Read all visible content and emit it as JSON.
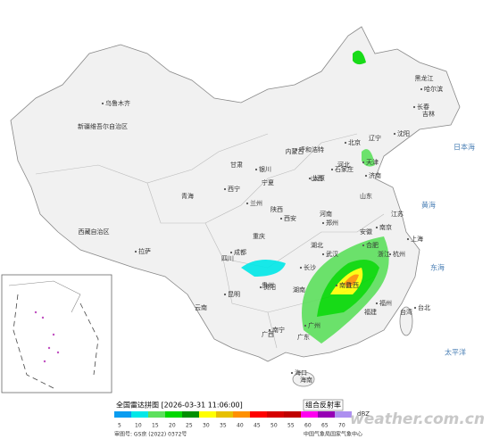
{
  "map": {
    "labels": [
      "新疆维吾尔自治区",
      "西藏自治区",
      "青海",
      "甘肃",
      "内蒙古",
      "黑龙江",
      "吉林",
      "辽宁",
      "河北",
      "山西",
      "陕西",
      "宁夏",
      "四川",
      "云南",
      "贵州",
      "广西",
      "广东",
      "湖南",
      "湖北",
      "河南",
      "山东",
      "江苏",
      "安徽",
      "浙江",
      "江西",
      "福建",
      "台湾",
      "海南",
      "重庆",
      "乌鲁木齐",
      "拉萨",
      "西宁",
      "兰州",
      "呼和浩特",
      "哈尔滨",
      "长春",
      "沈阳",
      "北京",
      "天津",
      "石家庄",
      "太原",
      "济南",
      "郑州",
      "西安",
      "银川",
      "成都",
      "武汉",
      "长沙",
      "贵阳",
      "昆明",
      "南宁",
      "广州",
      "南昌",
      "合肥",
      "南京",
      "上海",
      "杭州",
      "福州",
      "台北",
      "海口",
      "日本海",
      "黄海",
      "东海",
      "太平洋"
    ]
  },
  "legend": {
    "title": "全国雷达拼图 [2026-03-31 11:06:00]",
    "product": "组合反射率",
    "unit": "dBZ",
    "scale": [
      {
        "label": "5",
        "color": "#0a9cf0"
      },
      {
        "label": "10",
        "color": "#00e8e8"
      },
      {
        "label": "15",
        "color": "#5de05d"
      },
      {
        "label": "20",
        "color": "#00d800"
      },
      {
        "label": "25",
        "color": "#009000"
      },
      {
        "label": "30",
        "color": "#ffff00"
      },
      {
        "label": "35",
        "color": "#e7c000"
      },
      {
        "label": "40",
        "color": "#ff9000"
      },
      {
        "label": "45",
        "color": "#ff0000"
      },
      {
        "label": "50",
        "color": "#d60000"
      },
      {
        "label": "55",
        "color": "#c00000"
      },
      {
        "label": "60",
        "color": "#ff00f0"
      },
      {
        "label": "65",
        "color": "#9600b4"
      },
      {
        "label": "70",
        "color": "#ad90f0"
      }
    ]
  },
  "footer": {
    "approval": "审图号: GS京 (2022) 0372号",
    "agency": "中国气象局国家气象中心",
    "brand": "weather.com.cn"
  }
}
